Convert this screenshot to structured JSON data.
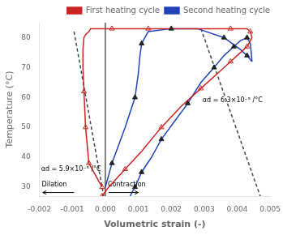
{
  "chart_data": {
    "type": "line",
    "xlabel": "Volumetric strain (-)",
    "ylabel": "Temperature (°C)",
    "xlim": [
      -0.002,
      0.005
    ],
    "ylim": [
      27,
      85
    ],
    "xticks": [
      -0.002,
      -0.001,
      {
        "value": 0,
        "label": "0.000"
      },
      0.001,
      0.002,
      0.003,
      0.004,
      0.005
    ],
    "yticks": [
      30,
      40,
      50,
      60,
      70,
      80
    ],
    "grid": false,
    "legend": "upper right",
    "series": [
      {
        "name": "First heating cycle",
        "type": "line",
        "color": "#cc2222",
        "line_style": "solid",
        "x": [
          -0.0001,
          -0.0005,
          -0.0006,
          -0.00065,
          -0.00068,
          -0.00068,
          -0.00065,
          -0.0006,
          -0.0005,
          -0.00045,
          0.0002,
          0.0013,
          0.0026,
          0.0038,
          0.0043,
          0.0044,
          0.00445
        ],
        "values": [
          30,
          38,
          50,
          62,
          70,
          76,
          80,
          81,
          82,
          83,
          83,
          83,
          83,
          83,
          83,
          82,
          80
        ]
      },
      {
        "type": "line",
        "color": "#cc2222",
        "line_style": "solid",
        "x": [
          0.00445,
          0.0044,
          0.0043,
          0.0041,
          0.0038,
          0.0034,
          0.0029,
          0.0023,
          0.0017,
          0.0011,
          0.0006,
          0.0001,
          -0.0001
        ],
        "values": [
          80,
          79,
          77,
          75,
          72,
          68,
          63,
          57,
          50,
          42,
          36,
          30,
          27
        ]
      },
      {
        "type": "scatter",
        "color": "#cc2222",
        "marker": "triangle-open",
        "x": [
          -0.00065,
          -0.0006,
          -0.0005,
          -0.0001,
          0.0002,
          0.0013,
          0.0038,
          0.0044
        ],
        "values": [
          62,
          50,
          38,
          30,
          83,
          83,
          83,
          82
        ]
      },
      {
        "type": "scatter",
        "color": "#cc2222",
        "marker": "triangle-open",
        "x": [
          0.0043,
          0.0038,
          0.0029,
          0.0017,
          0.0006,
          -0.0001
        ],
        "values": [
          77,
          72,
          63,
          50,
          36,
          27
        ]
      },
      {
        "name": "Second heating cycle",
        "type": "line",
        "color": "#2244bb",
        "line_style": "solid",
        "x": [
          0.0,
          0.0002,
          0.0006,
          0.0009,
          0.001,
          0.00105,
          0.0011,
          0.0012,
          0.0013,
          0.002,
          0.0028,
          0.0036,
          0.0041,
          0.0043,
          0.00445
        ],
        "values": [
          30,
          38,
          50,
          60,
          68,
          74,
          78,
          80,
          82,
          83,
          83,
          80,
          76,
          74,
          72
        ]
      },
      {
        "type": "line",
        "color": "#2244bb",
        "line_style": "solid",
        "x": [
          0.00445,
          0.0044,
          0.0043,
          0.0041,
          0.0039,
          0.0036,
          0.0033,
          0.0029,
          0.0025,
          0.0021,
          0.0017,
          0.0014,
          0.0011,
          0.0009,
          0.00075
        ],
        "values": [
          72,
          78,
          80,
          79,
          77,
          74,
          70,
          65,
          58,
          52,
          46,
          40,
          35,
          30,
          27
        ]
      },
      {
        "type": "scatter",
        "color": "#222222",
        "marker": "triangle",
        "x": [
          0.0002,
          0.0009,
          0.0011,
          0.002,
          0.0036,
          0.0043
        ],
        "values": [
          38,
          60,
          78,
          83,
          80,
          74
        ]
      },
      {
        "type": "scatter",
        "color": "#222222",
        "marker": "triangle",
        "x": [
          0.0043,
          0.0039,
          0.0033,
          0.0025,
          0.0017,
          0.0011,
          0.0009
        ],
        "values": [
          80,
          77,
          70,
          58,
          46,
          35,
          30
        ]
      },
      {
        "type": "line",
        "color": "#444444",
        "line_style": "dashed",
        "x": [
          -0.00095,
          -5e-05
        ],
        "values": [
          82,
          27
        ]
      },
      {
        "type": "line",
        "color": "#444444",
        "line_style": "dashed",
        "x": [
          0.0029,
          0.0047
        ],
        "values": [
          83,
          27
        ]
      }
    ],
    "vline": {
      "x": 0,
      "color": "black"
    },
    "annotations": [
      {
        "text": "αd = 5.9×10⁻⁵ /°C",
        "x": -0.00195,
        "y": 36,
        "color": "black"
      },
      {
        "text": "αd = 6.3×10⁻⁵ /°C",
        "x": 0.00295,
        "y": 59,
        "color": "black"
      }
    ],
    "arrows": [
      {
        "text": "Dilation",
        "text_x": -0.00155,
        "text_y": 29.8,
        "from": [
          -0.00095,
          28.2
        ],
        "to": [
          -0.0019,
          28.2
        ],
        "color": "black"
      },
      {
        "text": "Contraction",
        "text_x": 0.00065,
        "text_y": 29.8,
        "from": [
          0.0001,
          28.2
        ],
        "to": [
          0.001,
          28.2
        ],
        "color": "black"
      }
    ]
  }
}
